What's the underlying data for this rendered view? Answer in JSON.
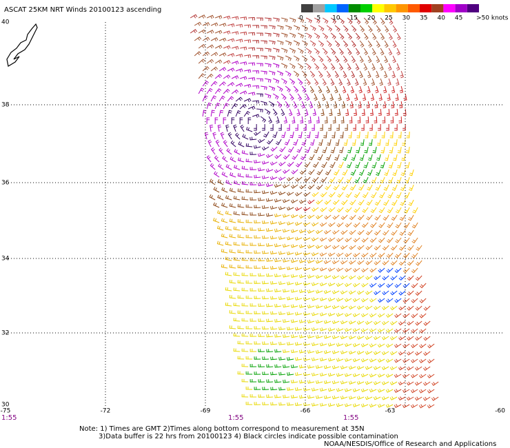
{
  "header": {
    "title": "ASCAT 25KM NRT Winds 20100123 ascending"
  },
  "colorbar": {
    "labels": [
      "0",
      "5",
      "10",
      "15",
      "20",
      "25",
      "30",
      "35",
      "40",
      "45",
      ">50 knots"
    ],
    "colors": [
      "#404040",
      "#a0a0a0",
      "#00c8ff",
      "#0064ff",
      "#008c00",
      "#00d000",
      "#ffff00",
      "#ffc800",
      "#ff9600",
      "#ff5a00",
      "#e00000",
      "#a04020",
      "#ff00ff",
      "#a000c8",
      "#500080"
    ]
  },
  "axes": {
    "lat_ticks": [
      "40",
      "38",
      "36",
      "34",
      "32",
      "30"
    ],
    "lon_ticks": [
      "-75",
      "-72",
      "-69",
      "-66",
      "-63",
      "-60"
    ]
  },
  "time_labels": [
    "1:55",
    "1:55",
    "1:55"
  ],
  "notes": [
    "Note: 1) Times are GMT 2)Times along bottom correspond to measurement at 35N",
    "3)Data buffer is 22 hrs from 20100123 4) Black circles indicate possible contamination"
  ],
  "credit": "NOAA/NESDIS/Office of Research and Applications"
}
